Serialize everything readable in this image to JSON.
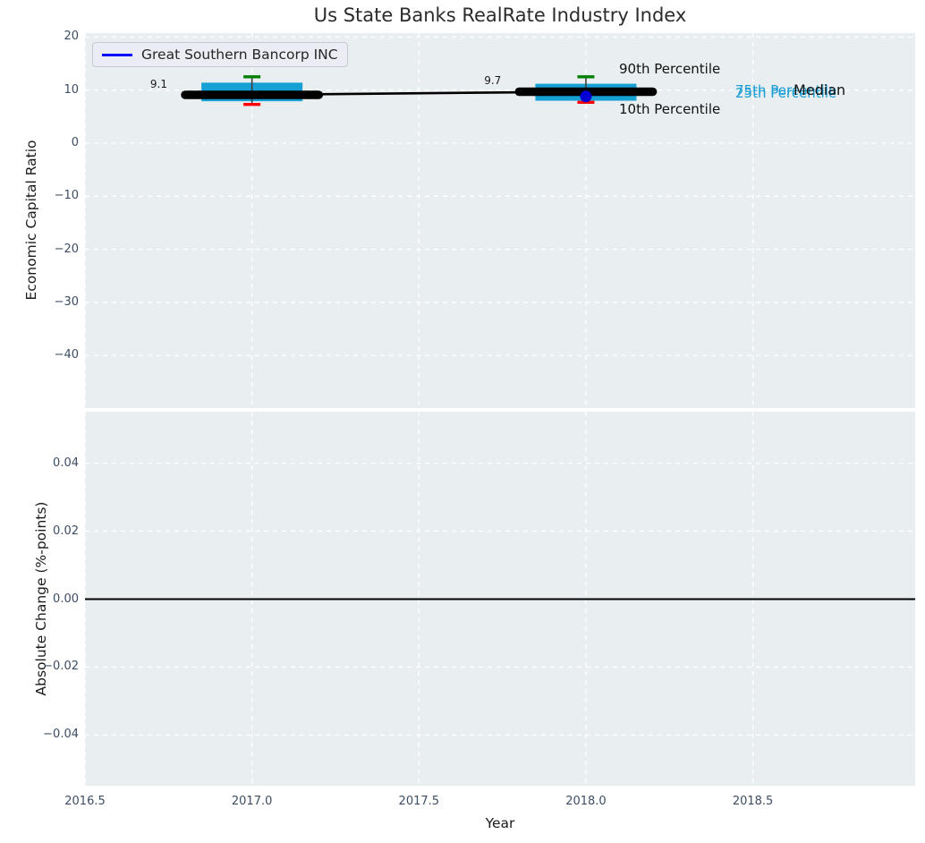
{
  "title": "Us State Banks RealRate Industry Index",
  "legend": {
    "label": "Great Southern Bancorp INC"
  },
  "colors": {
    "plot_background": "#e9eef1",
    "grid": "#ffffff",
    "box_fill": "#16a0d4",
    "whisker": "#3f3f3f",
    "cap_90th": "#008000",
    "cap_10th": "#ff0000",
    "median_line": "#000000",
    "company_line": "#0000ff",
    "company_marker": "#0000d4",
    "percentile_label": "#1a9fd4",
    "zero_line": "#000000"
  },
  "chart_data": [
    {
      "type": "boxplot",
      "subplot": "top",
      "title": "Us State Banks RealRate Industry Index",
      "ylabel": "Economic Capital Ratio",
      "xlabel": "Year",
      "xlim": [
        2016.5,
        2018.99
      ],
      "ylim": [
        -49.9,
        20.7
      ],
      "grid": true,
      "legend_position": "upper left",
      "legend_entries": [
        "Great Southern Bancorp INC"
      ],
      "yticks": [
        {
          "v": 20,
          "label": "20"
        },
        {
          "v": 10,
          "label": "10"
        },
        {
          "v": 0,
          "label": "0"
        },
        {
          "v": -10,
          "label": "−10"
        },
        {
          "v": -20,
          "label": "−20"
        },
        {
          "v": -30,
          "label": "−30"
        },
        {
          "v": -40,
          "label": "−40"
        }
      ],
      "xticks": [
        {
          "v": 2016.5,
          "label": "2016.5"
        },
        {
          "v": 2017.0,
          "label": "2017.0"
        },
        {
          "v": 2017.5,
          "label": "2017.5"
        },
        {
          "v": 2018.0,
          "label": "2018.0"
        },
        {
          "v": 2018.5,
          "label": "2018.5"
        }
      ],
      "boxes": [
        {
          "x": 2017,
          "median": 9.1,
          "median_label": "9.1",
          "q1": 7.9,
          "q3": 11.4,
          "p10": 7.3,
          "p90": 12.5
        },
        {
          "x": 2018,
          "median": 9.7,
          "median_label": "9.7",
          "q1": 8.0,
          "q3": 11.2,
          "p10": 7.7,
          "p90": 12.5
        }
      ],
      "median_line": {
        "x": [
          2017,
          2018
        ],
        "y": [
          9.1,
          9.7
        ]
      },
      "company_point": {
        "name": "Great Southern Bancorp INC",
        "x": 2018,
        "y": 8.8
      },
      "annotations": {
        "p90": "90th Percentile",
        "p10": "10th Percentile",
        "p75": "75th Percentile",
        "p25": "25th Percentile",
        "median": "Median"
      }
    },
    {
      "type": "line",
      "subplot": "bottom",
      "ylabel": "Absolute Change (%-points)",
      "xlabel": "Year",
      "xlim": [
        2016.5,
        2018.99
      ],
      "ylim": [
        -0.055,
        0.055
      ],
      "grid": true,
      "zero_line_y": 0.0,
      "yticks": [
        {
          "v": 0.04,
          "label": "0.04"
        },
        {
          "v": 0.02,
          "label": "0.02"
        },
        {
          "v": 0.0,
          "label": "0.00"
        },
        {
          "v": -0.02,
          "label": "−0.02"
        },
        {
          "v": -0.04,
          "label": "−0.04"
        }
      ],
      "xticks": [
        {
          "v": 2016.5,
          "label": "2016.5"
        },
        {
          "v": 2017.0,
          "label": "2017.0"
        },
        {
          "v": 2017.5,
          "label": "2017.5"
        },
        {
          "v": 2018.0,
          "label": "2018.0"
        },
        {
          "v": 2018.5,
          "label": "2018.5"
        }
      ]
    }
  ]
}
